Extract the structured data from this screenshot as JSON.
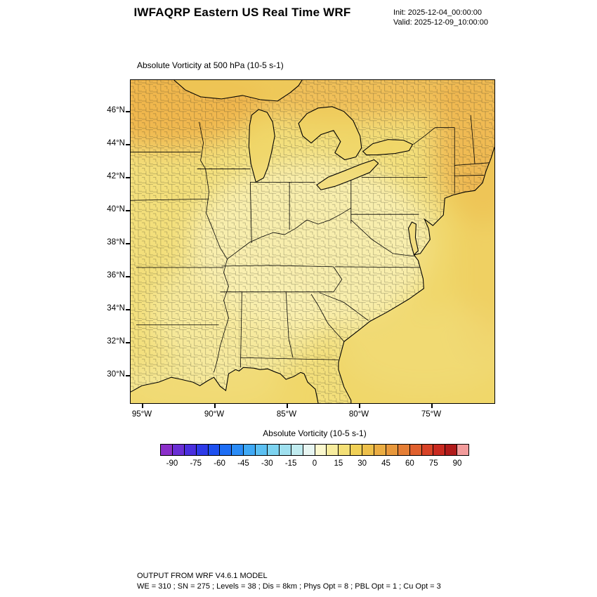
{
  "header": {
    "title": "IWFAQRP Eastern US Real Time WRF",
    "init_label": "Init: 2025-12-04_00:00:00",
    "valid_label": "Valid: 2025-12-09_10:00:00"
  },
  "map": {
    "title": "Absolute Vorticity at 500 hPa   (10-5 s-1)",
    "lat_ticks": [
      "46°N",
      "44°N",
      "42°N",
      "40°N",
      "38°N",
      "36°N",
      "34°N",
      "32°N",
      "30°N"
    ],
    "lon_ticks": [
      "95°W",
      "90°W",
      "85°W",
      "80°W",
      "75°W"
    ],
    "field_colors": {
      "base": "#f3df7b",
      "light": "#f8f0b2",
      "orange": "#efb44c",
      "water": "#edcf5b",
      "outline": "#000000"
    }
  },
  "colorbar": {
    "title": "Absolute Vorticity  (10-5 s-1)",
    "tick_labels": [
      "-90",
      "-75",
      "-60",
      "-45",
      "-30",
      "-15",
      "0",
      "15",
      "30",
      "45",
      "60",
      "75",
      "90"
    ],
    "colors": [
      "#8b2fc9",
      "#6a2fd4",
      "#4a2fde",
      "#2e3ae8",
      "#1e50f0",
      "#1e6ef5",
      "#2a8cf7",
      "#3fa9f5",
      "#5cc0f2",
      "#7dd3f0",
      "#9fe0ef",
      "#c0ebef",
      "#e8f6f2",
      "#fbf8ce",
      "#f7ec9e",
      "#f3df76",
      "#f0d056",
      "#eec04a",
      "#ebad43",
      "#e8983c",
      "#e57e35",
      "#e0602e",
      "#d84327",
      "#c92a20",
      "#b01a1a",
      "#f29b9b"
    ]
  },
  "footer": {
    "line1": "OUTPUT FROM WRF V4.6.1 MODEL",
    "line2": "WE = 310 ; SN = 275 ; Levels = 38 ; Dis = 8km ; Phys Opt = 8 ; PBL Opt = 1 ; Cu Opt = 3"
  }
}
